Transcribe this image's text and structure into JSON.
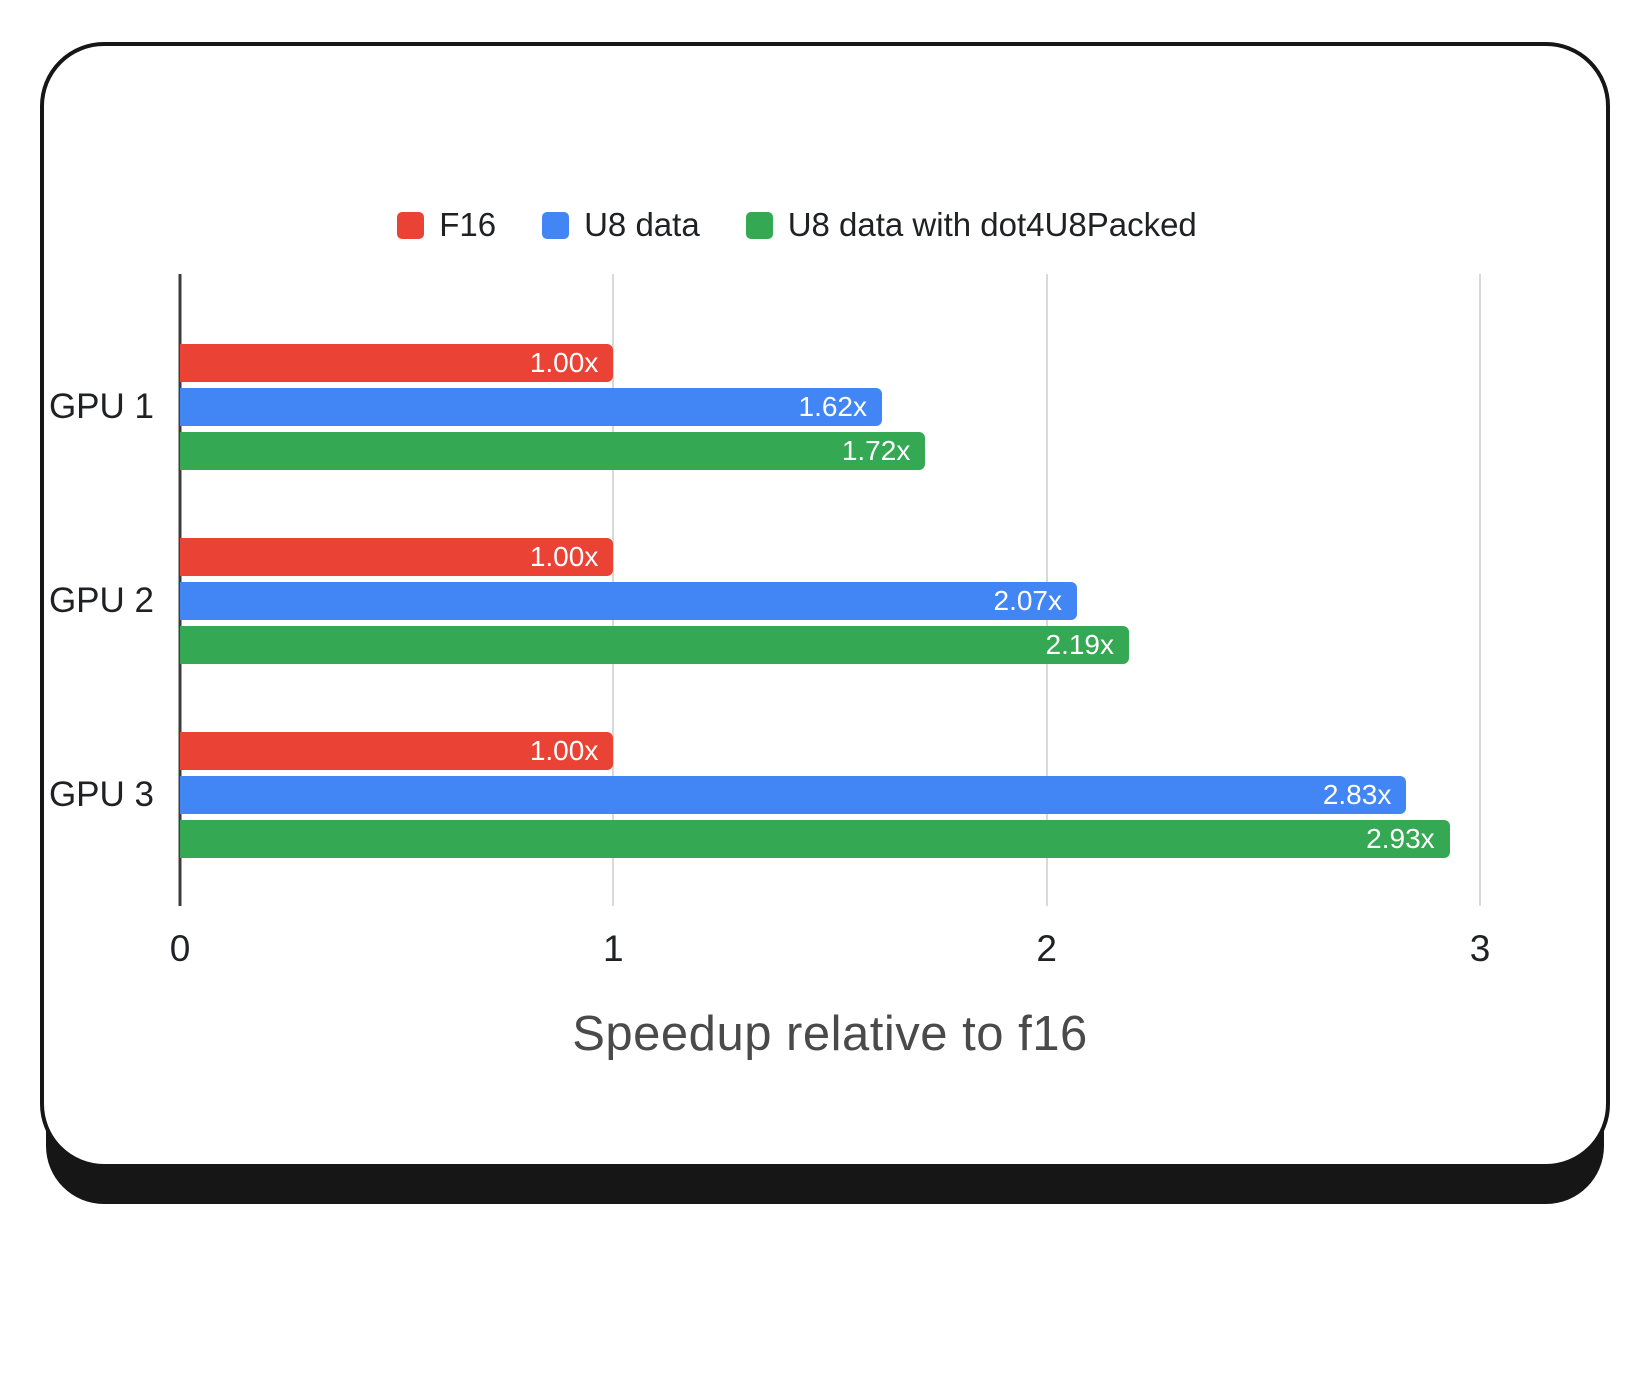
{
  "chart_data": {
    "type": "bar",
    "orientation": "horizontal",
    "title": "Speedup relative to f16",
    "categories": [
      "GPU 1",
      "GPU 2",
      "GPU 3"
    ],
    "series": [
      {
        "name": "F16",
        "color": "#ea4335",
        "values": [
          1.0,
          1.0,
          1.0
        ],
        "labels": [
          "1.00x",
          "1.00x",
          "1.00x"
        ]
      },
      {
        "name": "U8 data",
        "color": "#4285f4",
        "values": [
          1.62,
          2.07,
          2.83
        ],
        "labels": [
          "1.62x",
          "2.07x",
          "2.83x"
        ]
      },
      {
        "name": "U8 data with dot4U8Packed",
        "color": "#34a853",
        "values": [
          1.72,
          2.19,
          2.93
        ],
        "labels": [
          "1.72x",
          "2.19x",
          "2.93x"
        ]
      }
    ],
    "x_axis": {
      "min": 0,
      "max": 3,
      "ticks": [
        "0",
        "1",
        "2",
        "3"
      ],
      "tick_values": [
        0,
        1,
        2,
        3
      ]
    },
    "legend_position": "top",
    "grid": true,
    "value_label_color": "#ffffff",
    "zero_line_color": "#3c3c3c",
    "gridline_color": "#d9d9d9"
  }
}
